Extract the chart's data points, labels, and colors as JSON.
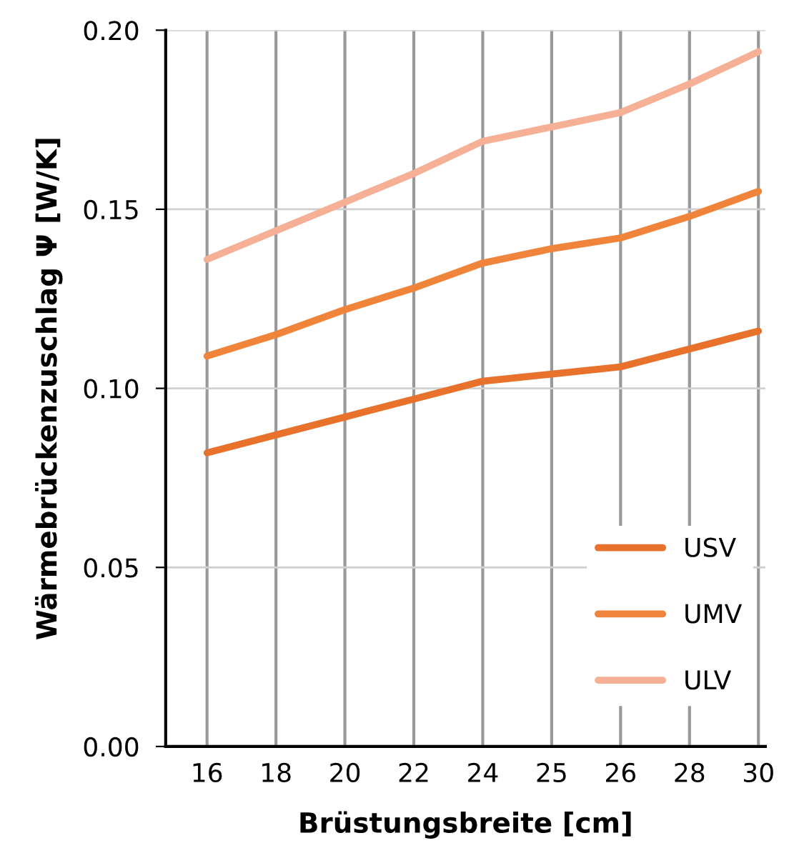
{
  "chart_data": {
    "type": "line",
    "xlabel": "Brüstungsbreite [cm]",
    "ylabel": "Wärmebrückenzuschlag Ψ [W/K]",
    "categories": [
      "16",
      "18",
      "20",
      "22",
      "24",
      "25",
      "26",
      "28",
      "30"
    ],
    "series": [
      {
        "name": "USV",
        "color": "#e8722c",
        "values": [
          0.082,
          0.087,
          0.092,
          0.097,
          0.102,
          0.104,
          0.106,
          0.111,
          0.116
        ]
      },
      {
        "name": "UMV",
        "color": "#f0843a",
        "values": [
          0.109,
          0.115,
          0.122,
          0.128,
          0.135,
          0.139,
          0.142,
          0.148,
          0.155
        ]
      },
      {
        "name": "ULV",
        "color": "#f6b096",
        "values": [
          0.136,
          0.144,
          0.152,
          0.16,
          0.169,
          0.173,
          0.177,
          0.185,
          0.194
        ]
      }
    ],
    "ylim": [
      0,
      0.2
    ],
    "yticks": [
      {
        "value": 0,
        "label": "0.00"
      },
      {
        "value": 0.05,
        "label": "0.05"
      },
      {
        "value": 0.1,
        "label": "0.10"
      },
      {
        "value": 0.15,
        "label": "0.15"
      },
      {
        "value": 0.2,
        "label": "0.20"
      }
    ],
    "grid": true,
    "legend": "lower right",
    "marker": "none",
    "line_style": "solid"
  }
}
